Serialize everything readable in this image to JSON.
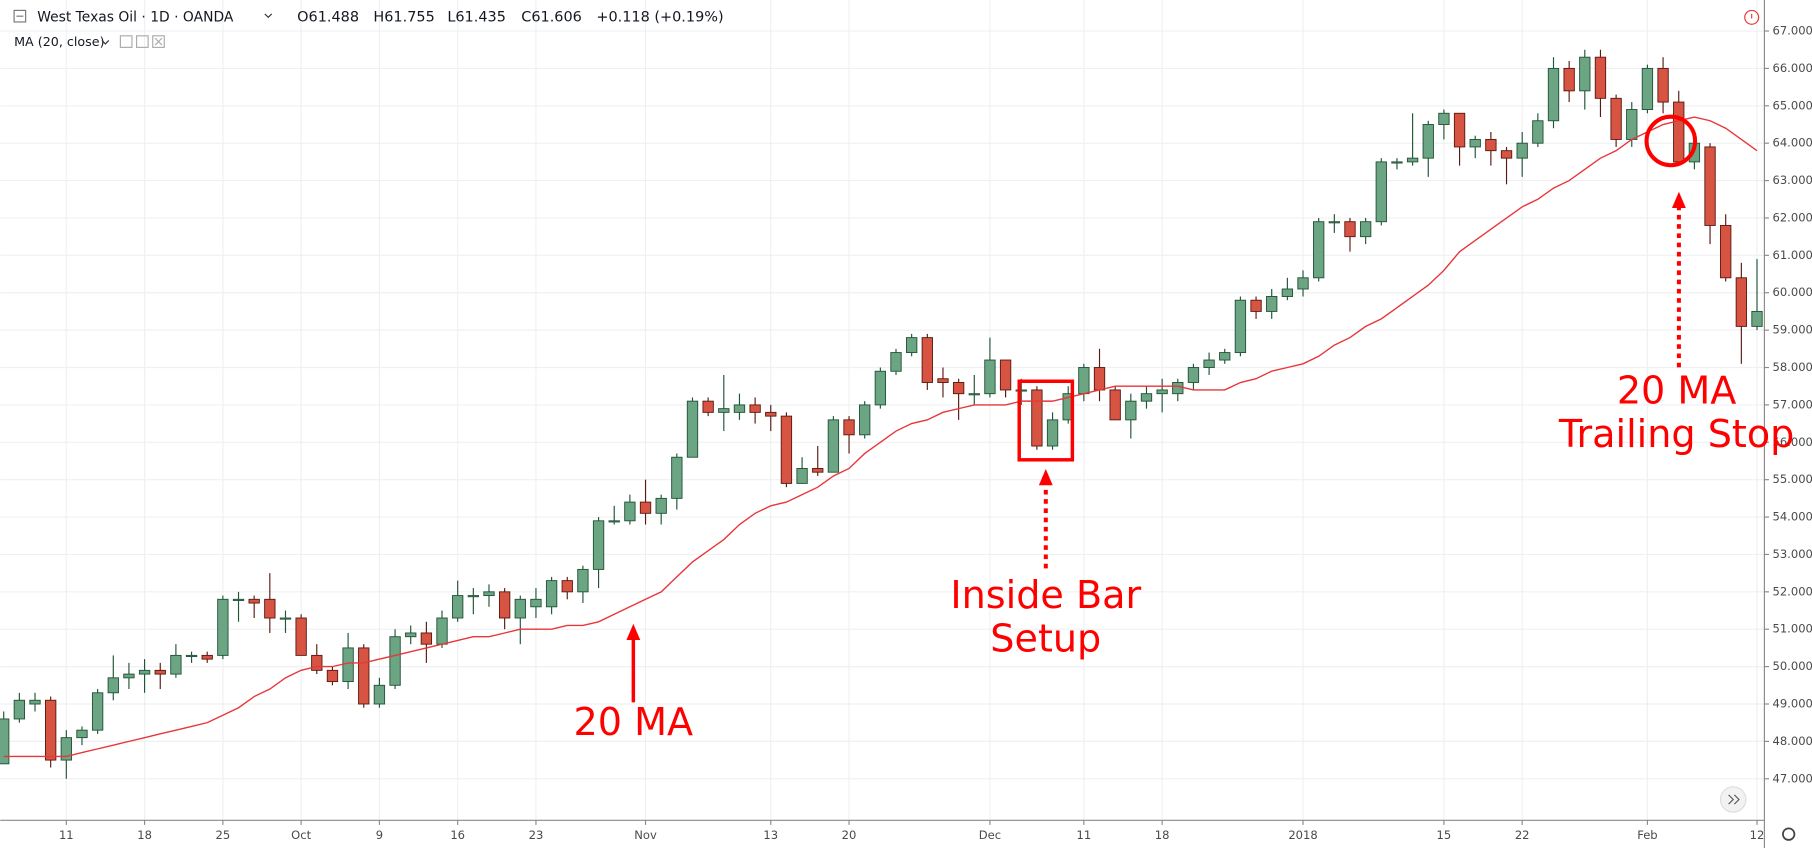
{
  "chart_data": {
    "type": "candlestick",
    "title": "West Texas Oil · 1D · OANDA",
    "legend": [
      "O61.488",
      "H61.755",
      "L61.435",
      "C61.606",
      "+0.118 (+0.19%)"
    ],
    "categories": [
      null,
      null,
      null,
      null,
      "11",
      null,
      null,
      null,
      null,
      "18",
      null,
      null,
      null,
      null,
      "25",
      null,
      null,
      null,
      null,
      "Oct",
      null,
      null,
      null,
      null,
      "9",
      null,
      null,
      null,
      null,
      "16",
      null,
      null,
      null,
      null,
      "23",
      null,
      null,
      null,
      null,
      null,
      null,
      "Nov",
      null,
      null,
      null,
      null,
      null,
      null,
      null,
      "13",
      null,
      null,
      null,
      null,
      "20",
      null,
      null,
      null,
      null,
      null,
      null,
      null,
      null,
      "Dec",
      null,
      null,
      null,
      null,
      null,
      "11",
      null,
      null,
      null,
      null,
      "18",
      null,
      null,
      null,
      null,
      null,
      null,
      null,
      null,
      "2018",
      null,
      null,
      null,
      null,
      null,
      null,
      null,
      null,
      "15",
      null,
      null,
      null,
      null,
      "22",
      null,
      null,
      null,
      null,
      null,
      null,
      null,
      "Feb",
      null,
      null,
      null,
      null,
      null,
      null,
      "12"
    ],
    "open": [
      47.4,
      48.6,
      49.0,
      49.1,
      47.5,
      48.1,
      48.3,
      49.3,
      49.7,
      49.8,
      49.9,
      49.8,
      50.3,
      50.3,
      50.3,
      51.8,
      51.8,
      51.8,
      51.3,
      51.3,
      50.3,
      49.9,
      49.6,
      50.5,
      49.0,
      49.5,
      50.8,
      50.9,
      50.6,
      51.3,
      51.9,
      51.9,
      52.0,
      51.3,
      51.6,
      51.6,
      52.3,
      52.0,
      52.6,
      53.9,
      53.9,
      54.4,
      54.1,
      54.5,
      55.6,
      57.1,
      56.8,
      56.8,
      57.0,
      56.8,
      56.7,
      54.9,
      55.3,
      55.2,
      56.6,
      56.2,
      57.0,
      57.9,
      58.4,
      58.8,
      57.7,
      57.6,
      57.3,
      57.3,
      58.2,
      57.4,
      57.4,
      55.9,
      56.6,
      57.3,
      58.0,
      57.4,
      56.6,
      57.1,
      57.3,
      57.3,
      57.6,
      58.0,
      58.2,
      58.4,
      59.8,
      59.5,
      59.9,
      60.1,
      60.4,
      61.9,
      61.9,
      61.5,
      61.9,
      63.5,
      63.5,
      63.6,
      64.5,
      64.8,
      63.9,
      64.1,
      63.8,
      63.6,
      64.0,
      64.6,
      66.0,
      65.4,
      66.3,
      65.2,
      64.1,
      64.9,
      66.0,
      65.1,
      63.5,
      63.9,
      61.8,
      60.4,
      59.1
    ],
    "high": [
      48.8,
      49.3,
      49.3,
      49.2,
      48.3,
      48.4,
      49.4,
      50.3,
      50.1,
      50.2,
      50.1,
      50.6,
      50.4,
      50.4,
      51.9,
      52.0,
      51.9,
      52.5,
      51.5,
      51.4,
      50.6,
      50.0,
      50.9,
      50.6,
      49.7,
      51.0,
      51.1,
      51.2,
      51.5,
      52.3,
      52.1,
      52.2,
      52.1,
      51.9,
      52.1,
      52.4,
      52.4,
      52.7,
      54.0,
      54.3,
      54.6,
      55.0,
      54.6,
      55.7,
      57.2,
      57.2,
      57.8,
      57.3,
      57.2,
      57.0,
      56.8,
      55.6,
      55.9,
      56.7,
      56.7,
      57.1,
      58.0,
      58.5,
      58.9,
      58.9,
      58.0,
      57.7,
      57.8,
      58.8,
      58.2,
      57.7,
      57.5,
      56.8,
      57.5,
      58.1,
      58.5,
      57.5,
      57.3,
      57.5,
      57.7,
      57.7,
      58.1,
      58.4,
      58.5,
      59.9,
      59.9,
      60.1,
      60.4,
      60.6,
      62.0,
      62.1,
      62.0,
      62.0,
      63.6,
      63.6,
      64.8,
      64.6,
      64.9,
      64.8,
      64.2,
      64.3,
      63.9,
      64.3,
      64.8,
      66.3,
      66.2,
      66.5,
      66.5,
      65.3,
      65.1,
      66.1,
      66.3,
      65.4,
      64.3,
      64.0,
      62.1,
      60.8,
      60.9
    ],
    "low": [
      47.4,
      48.5,
      48.8,
      47.3,
      47.0,
      47.9,
      48.2,
      49.1,
      49.4,
      49.3,
      49.4,
      49.7,
      50.1,
      50.1,
      50.2,
      51.2,
      51.3,
      50.9,
      50.9,
      50.3,
      49.8,
      49.5,
      49.4,
      48.9,
      48.9,
      49.4,
      50.6,
      50.1,
      50.5,
      51.2,
      51.4,
      51.6,
      51.0,
      50.6,
      51.3,
      51.4,
      51.8,
      51.7,
      52.1,
      53.8,
      53.8,
      53.8,
      53.8,
      54.2,
      55.6,
      56.7,
      56.3,
      56.6,
      56.5,
      56.3,
      54.8,
      54.9,
      55.1,
      55.2,
      55.7,
      56.1,
      56.9,
      57.8,
      58.3,
      57.4,
      57.2,
      56.6,
      57.0,
      57.2,
      57.2,
      57.0,
      55.8,
      55.8,
      56.5,
      57.1,
      57.1,
      56.6,
      56.1,
      56.9,
      56.8,
      57.1,
      57.4,
      57.8,
      58.1,
      58.3,
      59.3,
      59.3,
      59.8,
      59.9,
      60.3,
      61.6,
      61.1,
      61.3,
      61.8,
      63.3,
      63.4,
      63.1,
      64.1,
      63.4,
      63.6,
      63.4,
      62.9,
      63.1,
      63.9,
      64.4,
      65.1,
      64.9,
      64.7,
      63.9,
      63.9,
      64.8,
      64.8,
      63.4,
      63.3,
      61.3,
      60.3,
      58.1,
      59.0
    ],
    "close": [
      48.6,
      49.1,
      49.1,
      47.5,
      48.1,
      48.3,
      49.3,
      49.7,
      49.8,
      49.9,
      49.8,
      50.3,
      50.3,
      50.2,
      51.8,
      51.8,
      51.7,
      51.3,
      51.3,
      50.3,
      49.9,
      49.6,
      50.5,
      49.0,
      49.5,
      50.8,
      50.9,
      50.6,
      51.3,
      51.9,
      51.9,
      52.0,
      51.3,
      51.8,
      51.8,
      52.3,
      52.0,
      52.6,
      53.9,
      53.9,
      54.4,
      54.1,
      54.5,
      55.6,
      57.1,
      56.8,
      56.9,
      57.0,
      56.8,
      56.7,
      54.9,
      55.3,
      55.2,
      56.6,
      56.2,
      57.0,
      57.9,
      58.4,
      58.8,
      57.6,
      57.6,
      57.3,
      57.3,
      58.2,
      57.4,
      57.4,
      55.9,
      56.6,
      57.3,
      58.0,
      57.4,
      56.6,
      57.1,
      57.3,
      57.4,
      57.6,
      58.0,
      58.2,
      58.4,
      59.8,
      59.5,
      59.9,
      60.1,
      60.4,
      61.9,
      61.9,
      61.5,
      61.9,
      63.5,
      63.5,
      63.6,
      64.5,
      64.8,
      63.9,
      64.1,
      63.8,
      63.6,
      64.0,
      64.6,
      66.0,
      65.4,
      66.3,
      65.2,
      64.1,
      64.9,
      66.0,
      65.1,
      63.5,
      64.0,
      61.8,
      60.4,
      59.1,
      59.5
    ],
    "up_color": "#6ba583",
    "down_color": "#d75442",
    "ma": {
      "name": "MA (20, close)",
      "color": "#e8363a",
      "values": [
        47.6,
        47.6,
        47.6,
        47.6,
        47.6,
        47.7,
        47.8,
        47.9,
        48.0,
        48.1,
        48.2,
        48.3,
        48.4,
        48.5,
        48.7,
        48.9,
        49.2,
        49.4,
        49.7,
        49.9,
        50.0,
        50.0,
        50.1,
        50.1,
        50.2,
        50.3,
        50.4,
        50.5,
        50.6,
        50.7,
        50.8,
        50.8,
        50.9,
        51.0,
        51.0,
        51.0,
        51.1,
        51.1,
        51.2,
        51.4,
        51.6,
        51.8,
        52.0,
        52.4,
        52.8,
        53.1,
        53.4,
        53.8,
        54.1,
        54.3,
        54.4,
        54.6,
        54.8,
        55.1,
        55.3,
        55.7,
        56.0,
        56.3,
        56.5,
        56.6,
        56.8,
        56.9,
        57.0,
        57.0,
        57.0,
        57.1,
        57.1,
        57.1,
        57.2,
        57.3,
        57.4,
        57.5,
        57.5,
        57.5,
        57.5,
        57.5,
        57.4,
        57.4,
        57.4,
        57.6,
        57.7,
        57.9,
        58.0,
        58.1,
        58.3,
        58.6,
        58.8,
        59.1,
        59.3,
        59.6,
        59.9,
        60.2,
        60.6,
        61.1,
        61.4,
        61.7,
        62.0,
        62.3,
        62.5,
        62.8,
        63.0,
        63.3,
        63.6,
        63.8,
        64.1,
        64.3,
        64.5,
        64.6,
        64.7,
        64.6,
        64.4,
        64.1,
        63.8
      ]
    },
    "ylim": [
      45.89,
      67.83
    ],
    "yticks": [
      {
        "value": 47,
        "label": "47.000"
      },
      {
        "value": 48,
        "label": "48.000"
      },
      {
        "value": 49,
        "label": "49.000"
      },
      {
        "value": 50,
        "label": "50.000"
      },
      {
        "value": 51,
        "label": "51.000"
      },
      {
        "value": 52,
        "label": "52.000"
      },
      {
        "value": 53,
        "label": "53.000"
      },
      {
        "value": 54,
        "label": "54.000"
      },
      {
        "value": 55,
        "label": "55.000"
      },
      {
        "value": 56,
        "label": "56.000"
      },
      {
        "value": 57,
        "label": "57.000"
      },
      {
        "value": 58,
        "label": "58.000"
      },
      {
        "value": 59,
        "label": "59.000"
      },
      {
        "value": 60,
        "label": "60.000"
      },
      {
        "value": 61,
        "label": "61.000"
      },
      {
        "value": 62,
        "label": "62.000"
      },
      {
        "value": 63,
        "label": "63.000"
      },
      {
        "value": 64,
        "label": "64.000"
      },
      {
        "value": 65,
        "label": "65.000"
      },
      {
        "value": 66,
        "label": "66.000"
      },
      {
        "value": 67,
        "label": "67.000"
      }
    ],
    "grid": true,
    "annotations": [
      {
        "lines": [
          "20 MA"
        ]
      },
      {
        "lines": [
          "Inside Bar",
          "Setup"
        ]
      },
      {
        "lines": [
          "20 MA",
          "Trailing Stop"
        ]
      }
    ]
  }
}
